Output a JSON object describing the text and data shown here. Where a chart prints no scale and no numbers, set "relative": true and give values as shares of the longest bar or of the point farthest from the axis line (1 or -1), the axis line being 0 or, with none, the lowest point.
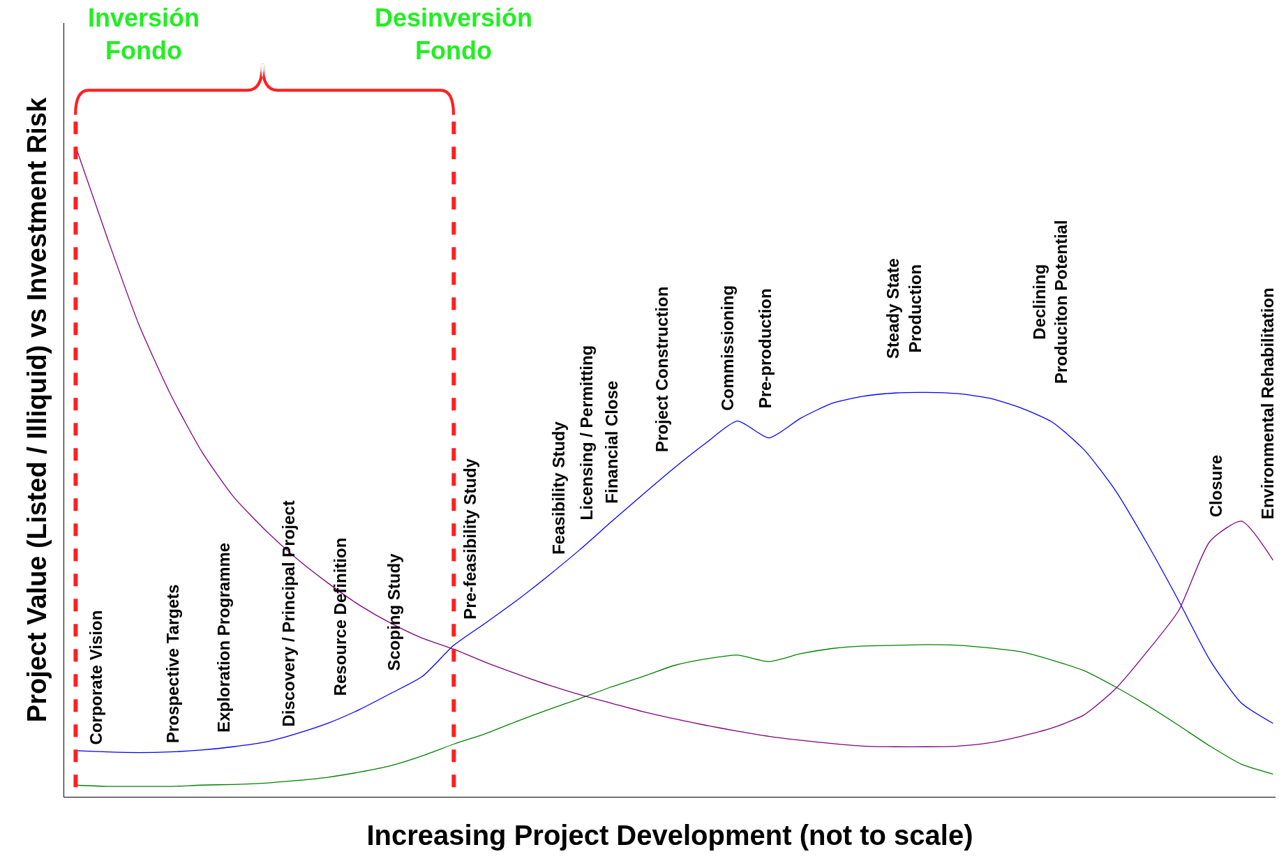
{
  "chart_data": {
    "type": "line",
    "relative": true,
    "xlabel": "Increasing Project Development (not to scale)",
    "ylabel": "Project Value (Listed / Illiquid) vs Investment Risk",
    "categories": [
      null,
      null,
      null,
      null,
      null,
      null,
      null,
      null,
      null,
      null,
      null,
      null,
      null,
      null,
      null,
      null,
      null,
      null,
      null,
      null,
      null,
      null,
      null,
      null,
      null,
      null,
      null,
      null,
      null,
      null,
      null,
      null,
      null,
      null,
      null,
      null,
      null,
      null,
      null
    ],
    "series": [
      {
        "color": "#0000ff",
        "values": [
          0.071,
          0.069,
          0.068,
          0.069,
          0.072,
          0.077,
          0.084,
          0.097,
          0.113,
          0.134,
          0.159,
          0.185,
          0.233,
          0.267,
          0.302,
          0.34,
          0.38,
          0.423,
          0.465,
          0.506,
          0.544,
          0.578,
          0.552,
          0.582,
          0.605,
          0.616,
          0.621,
          0.622,
          0.62,
          0.613,
          0.598,
          0.576,
          0.534,
          0.471,
          0.39,
          0.302,
          0.21,
          0.144,
          0.113
        ]
      },
      {
        "color": "#008000",
        "values": [
          0.018,
          0.016,
          0.016,
          0.016,
          0.018,
          0.019,
          0.021,
          0.025,
          0.03,
          0.038,
          0.048,
          0.063,
          0.081,
          0.097,
          0.116,
          0.134,
          0.151,
          0.169,
          0.185,
          0.202,
          0.212,
          0.218,
          0.208,
          0.22,
          0.228,
          0.232,
          0.233,
          0.234,
          0.233,
          0.229,
          0.223,
          0.21,
          0.194,
          0.169,
          0.141,
          0.11,
          0.078,
          0.05,
          0.035
        ]
      },
      {
        "color": "#800080",
        "values": [
          1.0,
          0.86,
          0.727,
          0.62,
          0.531,
          0.462,
          0.411,
          0.367,
          0.329,
          0.295,
          0.267,
          0.244,
          0.227,
          0.207,
          0.189,
          0.172,
          0.157,
          0.144,
          0.131,
          0.12,
          0.11,
          0.101,
          0.093,
          0.087,
          0.082,
          0.078,
          0.077,
          0.077,
          0.078,
          0.083,
          0.093,
          0.106,
          0.126,
          0.166,
          0.223,
          0.286,
          0.393,
          0.424,
          0.364
        ]
      }
    ],
    "annotations": [
      "Inversión\nFondo",
      "Desinversión\nFondo",
      "Corporate Vision",
      "Prospective Targets",
      "Exploration Programme",
      "Discovery / Principal Project",
      "Resource Definition",
      "Scoping Study",
      "Pre-feasibility Study",
      "Feasibility Study",
      "Licensing / Permitting",
      "Financial Close",
      "Project Construction",
      "Commissioning",
      "Pre-production",
      "Steady State\nProduction",
      "Declining\nProduciton Potential",
      "Closure",
      "Environmental Rehabilitation"
    ],
    "line_style": "solid",
    "marker": "none",
    "tick_labels": false
  }
}
